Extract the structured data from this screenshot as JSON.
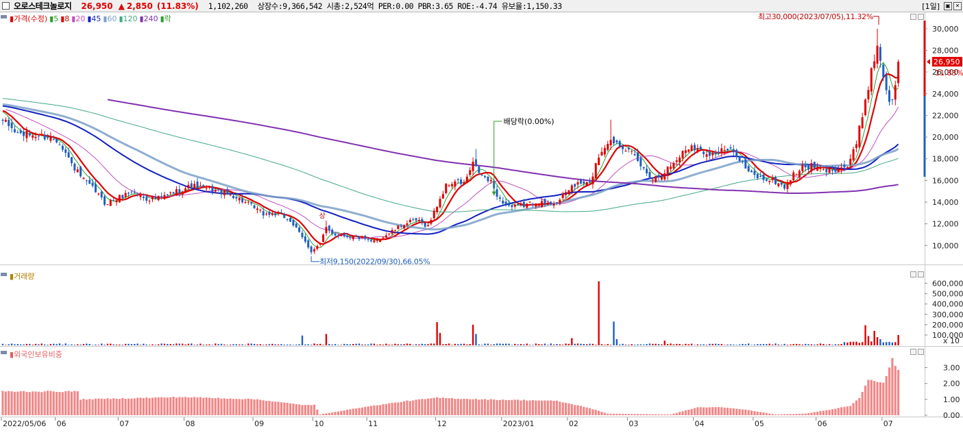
{
  "header": {
    "stock_name": "오로스테크놀로지",
    "price": "26,950",
    "change_arrow": "▲",
    "change": "2,850",
    "change_pct": "(11.83%)",
    "volume": "1,102,260",
    "info": "상장수:9,366,542  시총:2,524억  PER:0.00  PBR:3.65  ROE:-4.74  유보율:1,150.33",
    "period": "[1일]"
  },
  "colors": {
    "up": "#e00000",
    "down": "#1e5fbf",
    "ma5": "#2aa02a",
    "ma8": "#e00000",
    "ma20": "#c050c0",
    "ma45": "#1020c0",
    "ma60": "#7aa0c8",
    "ma120": "#40a880",
    "ma240": "#8030b0",
    "foreign": "#f08888"
  },
  "price_panel": {
    "legend": [
      {
        "label": "가격(수정)",
        "color": "#e00000"
      },
      {
        "label": "5",
        "color": "#2aa02a"
      },
      {
        "label": "8",
        "color": "#e00000"
      },
      {
        "label": "20",
        "color": "#c050c0"
      },
      {
        "label": "45",
        "color": "#1020c0"
      },
      {
        "label": "60",
        "color": "#7aa0c8"
      },
      {
        "label": "120",
        "color": "#40a880"
      },
      {
        "label": "240",
        "color": "#8030b0"
      },
      {
        "label": "락",
        "color": "#2aa02a"
      }
    ],
    "y_ticks": [
      "30,000",
      "28,000",
      "26,000",
      "24,000",
      "22,000",
      "20,000",
      "18,000",
      "16,000",
      "14,000",
      "12,000",
      "10,000"
    ],
    "current_price": "26,950",
    "current_pct": "11.83%",
    "high_note": "최고30,000(2023/07/05),11.32%",
    "low_note": "최저9,150(2022/09/30),66.05%",
    "dividend_note": "배당락(0.00%)",
    "event_mark": "상"
  },
  "volume_panel": {
    "legend": "거래량",
    "y_ticks": [
      "600,000",
      "500,000",
      "400,000",
      "300,000",
      "200,000",
      "100,000"
    ],
    "unit": "x 10"
  },
  "foreign_panel": {
    "legend": "외국인보유비중",
    "y_ticks": [
      "3.00",
      "2.00",
      "1.00",
      "0.00"
    ]
  },
  "x_axis": [
    "2022/05/06",
    "06",
    "07",
    "08",
    "09",
    "10",
    "11",
    "12",
    "2023/01",
    "02",
    "03",
    "04",
    "05",
    "06",
    "07"
  ],
  "chart_data": {
    "type": "candlestick",
    "price_ylim": [
      8500,
      31000
    ],
    "volume_ylim": [
      0,
      650000
    ],
    "foreign_ylim": [
      0,
      3.8
    ],
    "month_start_index": [
      0,
      18,
      39,
      61,
      84,
      104,
      122,
      145,
      167,
      189,
      209,
      231,
      251,
      272,
      294
    ],
    "anchors": [
      [
        0,
        21500
      ],
      [
        5,
        20300
      ],
      [
        10,
        20200
      ],
      [
        15,
        20000
      ],
      [
        19,
        19600
      ],
      [
        23,
        17500
      ],
      [
        27,
        16000
      ],
      [
        31,
        15000
      ],
      [
        34,
        13900
      ],
      [
        38,
        14300
      ],
      [
        43,
        15000
      ],
      [
        48,
        14300
      ],
      [
        53,
        14400
      ],
      [
        58,
        15000
      ],
      [
        63,
        15500
      ],
      [
        67,
        15300
      ],
      [
        72,
        15000
      ],
      [
        77,
        14600
      ],
      [
        82,
        13800
      ],
      [
        87,
        12900
      ],
      [
        92,
        12900
      ],
      [
        96,
        12300
      ],
      [
        100,
        10700
      ],
      [
        103,
        9500
      ],
      [
        106,
        10100
      ],
      [
        108,
        11600
      ],
      [
        111,
        11000
      ],
      [
        115,
        10900
      ],
      [
        119,
        10700
      ],
      [
        123,
        10300
      ],
      [
        127,
        10800
      ],
      [
        130,
        11300
      ],
      [
        134,
        12000
      ],
      [
        138,
        12300
      ],
      [
        142,
        11800
      ],
      [
        145,
        13700
      ],
      [
        148,
        15500
      ],
      [
        151,
        15900
      ],
      [
        154,
        15700
      ],
      [
        157,
        17500
      ],
      [
        160,
        16400
      ],
      [
        163,
        15800
      ],
      [
        166,
        14200
      ],
      [
        170,
        13500
      ],
      [
        174,
        13700
      ],
      [
        178,
        14000
      ],
      [
        182,
        13800
      ],
      [
        186,
        14200
      ],
      [
        190,
        15500
      ],
      [
        193,
        15700
      ],
      [
        196,
        15700
      ],
      [
        199,
        18300
      ],
      [
        202,
        19600
      ],
      [
        205,
        19600
      ],
      [
        208,
        19000
      ],
      [
        211,
        18100
      ],
      [
        214,
        17000
      ],
      [
        217,
        16200
      ],
      [
        220,
        16600
      ],
      [
        224,
        17600
      ],
      [
        227,
        18600
      ],
      [
        230,
        19300
      ],
      [
        233,
        18700
      ],
      [
        237,
        18500
      ],
      [
        241,
        18800
      ],
      [
        245,
        18500
      ],
      [
        249,
        16700
      ],
      [
        253,
        16200
      ],
      [
        257,
        16000
      ],
      [
        261,
        15400
      ],
      [
        264,
        16500
      ],
      [
        267,
        17200
      ],
      [
        270,
        17300
      ],
      [
        274,
        16900
      ],
      [
        278,
        17100
      ],
      [
        282,
        17300
      ],
      [
        285,
        19300
      ],
      [
        288,
        23500
      ],
      [
        290,
        26000
      ],
      [
        292,
        28500
      ],
      [
        294,
        25800
      ],
      [
        296,
        23000
      ],
      [
        298,
        24500
      ],
      [
        299,
        26950
      ]
    ],
    "ma_start": [
      4,
      7,
      19,
      44,
      59,
      119,
      239
    ],
    "volume_spikes": [
      [
        100,
        95000
      ],
      [
        108,
        110000
      ],
      [
        145,
        225000
      ],
      [
        146,
        120000
      ],
      [
        157,
        200000
      ],
      [
        158,
        110000
      ],
      [
        190,
        70000
      ],
      [
        199,
        620000
      ],
      [
        204,
        230000
      ],
      [
        205,
        60000
      ],
      [
        221,
        45000
      ],
      [
        288,
        195000
      ],
      [
        289,
        90000
      ],
      [
        291,
        140000
      ],
      [
        292,
        80000
      ],
      [
        293,
        60000
      ],
      [
        299,
        100000
      ]
    ],
    "foreign": [
      [
        0,
        1.5
      ],
      [
        25,
        1.5
      ],
      [
        26,
        1.0
      ],
      [
        60,
        1.15
      ],
      [
        85,
        1.0
      ],
      [
        100,
        0.65
      ],
      [
        104,
        0.65
      ],
      [
        106,
        0.05
      ],
      [
        120,
        0.5
      ],
      [
        135,
        0.9
      ],
      [
        145,
        1.1
      ],
      [
        160,
        1.0
      ],
      [
        175,
        0.95
      ],
      [
        185,
        0.9
      ],
      [
        195,
        0.5
      ],
      [
        202,
        0.1
      ],
      [
        223,
        0.05
      ],
      [
        232,
        0.5
      ],
      [
        240,
        0.5
      ],
      [
        248,
        0.35
      ],
      [
        258,
        0.05
      ],
      [
        268,
        0.1
      ],
      [
        276,
        0.35
      ],
      [
        283,
        0.6
      ],
      [
        286,
        1.1
      ],
      [
        289,
        2.3
      ],
      [
        294,
        2.0
      ],
      [
        296,
        3.0
      ],
      [
        297,
        3.5
      ],
      [
        299,
        2.9
      ]
    ],
    "high": {
      "value": 30000,
      "date": "2023/07/05",
      "pct": 11.32
    },
    "low": {
      "value": 9150,
      "date": "2022/09/30",
      "pct": 66.05
    },
    "last_close": 26950
  }
}
